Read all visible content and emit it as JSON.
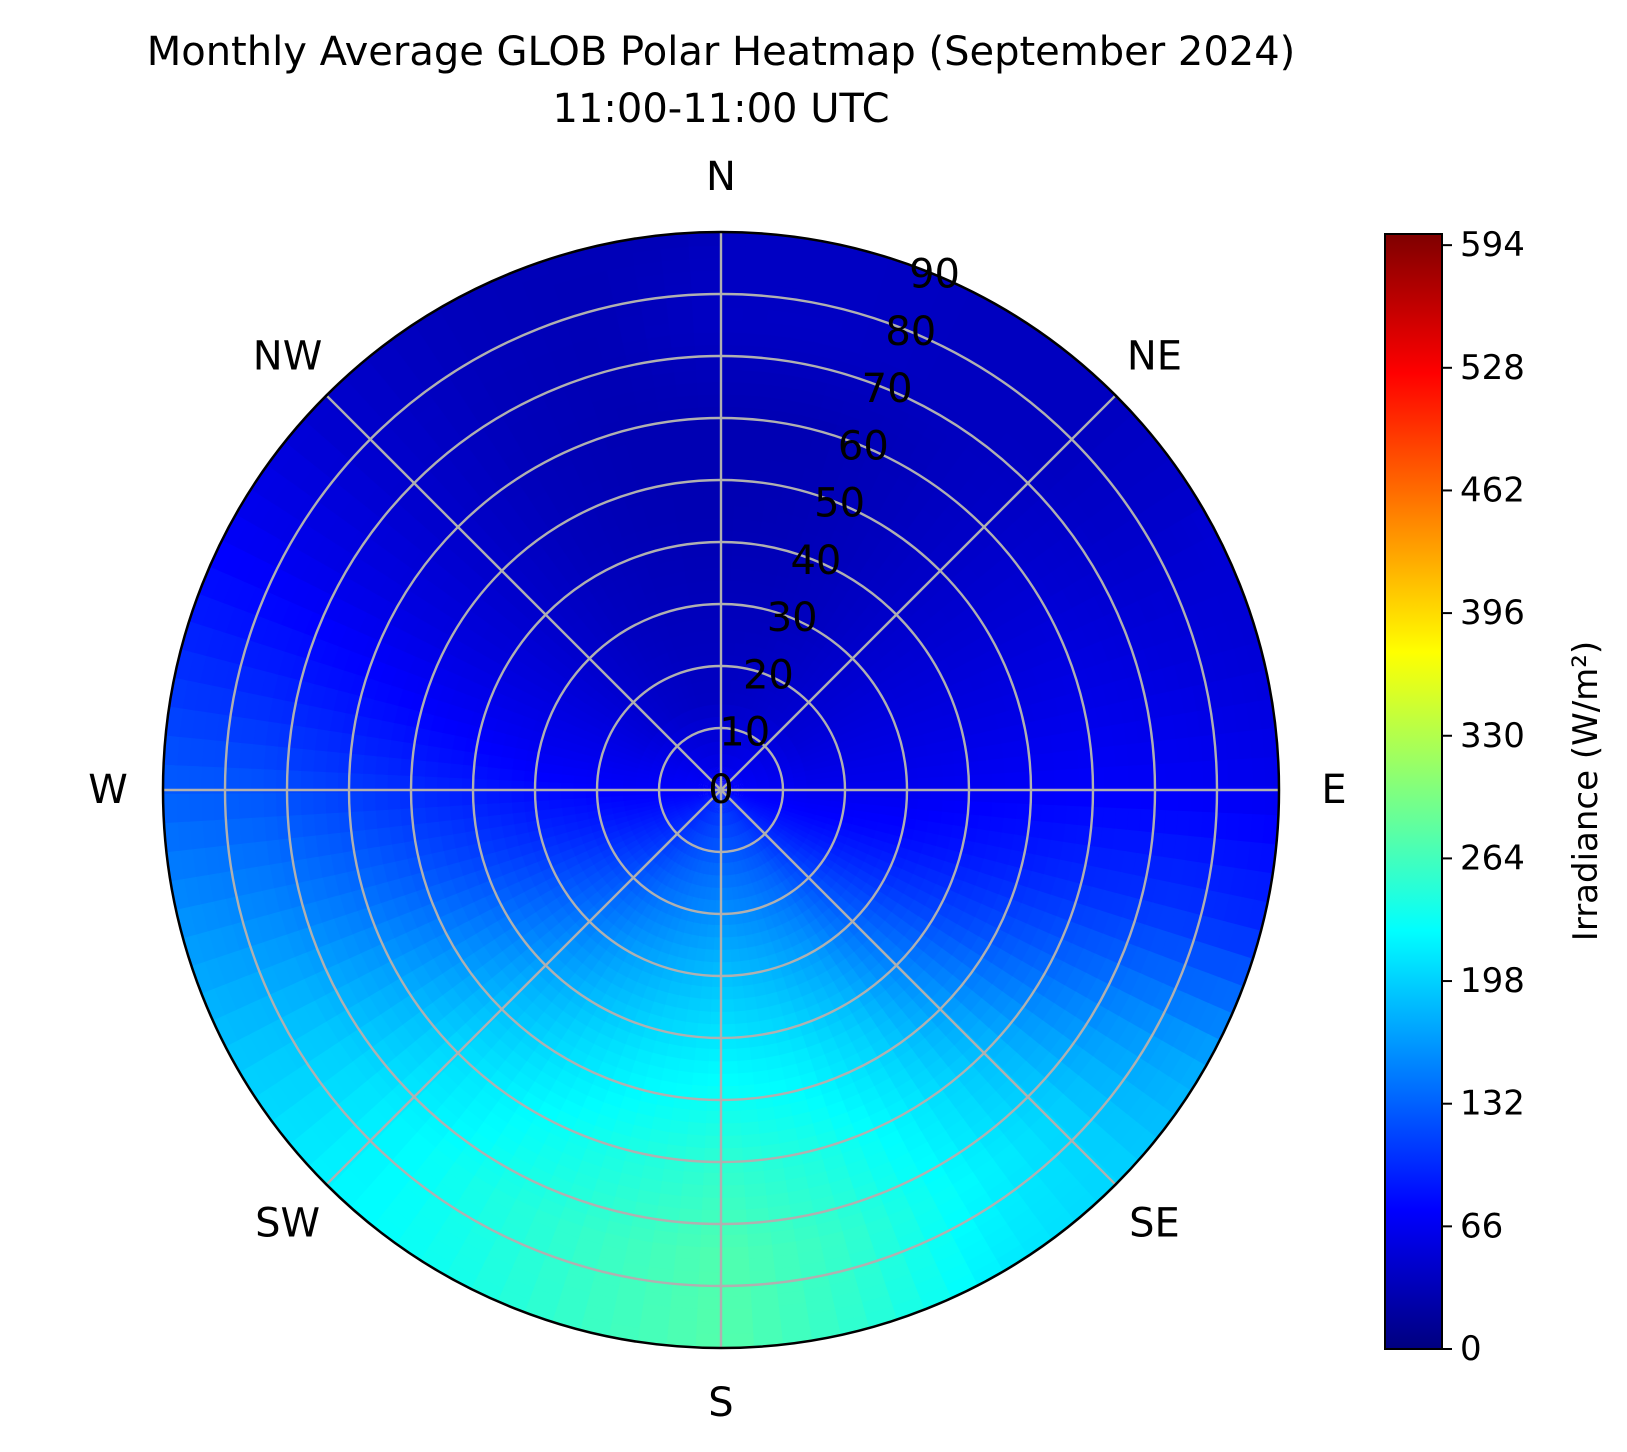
{
  "chart_data": {
    "type": "heatmap",
    "projection": "polar",
    "title": "Monthly Average GLOB Polar Heatmap (September 2024)",
    "subtitle": "11:00-11:00 UTC",
    "theta_direction": "clockwise",
    "theta_zero": "N",
    "direction_labels": [
      "N",
      "NE",
      "E",
      "SE",
      "S",
      "SW",
      "W",
      "NW"
    ],
    "direction_degrees": [
      0,
      45,
      90,
      135,
      180,
      225,
      270,
      315
    ],
    "radial_ticks": [
      "0",
      "10",
      "20",
      "30",
      "40",
      "50",
      "60",
      "70",
      "80",
      "90"
    ],
    "radial_values": [
      0,
      10,
      20,
      30,
      40,
      50,
      60,
      70,
      80,
      90
    ],
    "rlim": [
      0,
      90
    ],
    "grid": true,
    "azimuth_deg": [
      0,
      15,
      30,
      45,
      60,
      75,
      90,
      105,
      120,
      135,
      150,
      165,
      180,
      195,
      210,
      225,
      240,
      255,
      270,
      285,
      300,
      315,
      330,
      345,
      360
    ],
    "tilt_deg": [
      0,
      15,
      30,
      45,
      60,
      75,
      90
    ],
    "values": [
      [
        69,
        40,
        35,
        30,
        30,
        40,
        null
      ],
      [
        70,
        42,
        35,
        32,
        30,
        40,
        null
      ],
      [
        71,
        45,
        38,
        36,
        35,
        38,
        null
      ],
      [
        72,
        48,
        45,
        43,
        42,
        38,
        null
      ],
      [
        73,
        52,
        52,
        50,
        50,
        45,
        null
      ],
      [
        74,
        58,
        58,
        58,
        60,
        55,
        50
      ],
      [
        75,
        65,
        65,
        70,
        72,
        70,
        65
      ],
      [
        78,
        75,
        80,
        90,
        100,
        105,
        100
      ],
      [
        82,
        90,
        105,
        120,
        140,
        160,
        175
      ],
      [
        86,
        110,
        135,
        160,
        185,
        200,
        200
      ],
      [
        90,
        130,
        165,
        195,
        215,
        225,
        215
      ],
      [
        93,
        140,
        180,
        215,
        240,
        255,
        250
      ],
      [
        95,
        145,
        188,
        222,
        252,
        272,
        275
      ],
      [
        93,
        140,
        180,
        215,
        240,
        258,
        258
      ],
      [
        90,
        130,
        168,
        200,
        225,
        240,
        235
      ],
      [
        86,
        115,
        148,
        180,
        205,
        218,
        220
      ],
      [
        82,
        100,
        125,
        150,
        172,
        190,
        195
      ],
      [
        78,
        85,
        100,
        118,
        138,
        155,
        165
      ],
      [
        75,
        72,
        80,
        95,
        110,
        125,
        130
      ],
      [
        73,
        65,
        65,
        72,
        82,
        92,
        98
      ],
      [
        72,
        56,
        55,
        55,
        58,
        62,
        66
      ],
      [
        71,
        48,
        45,
        44,
        44,
        45,
        45
      ],
      [
        70,
        43,
        38,
        35,
        34,
        35,
        35
      ],
      [
        69,
        40,
        35,
        31,
        30,
        32,
        33
      ],
      [
        69,
        40,
        35,
        30,
        30,
        40,
        null
      ]
    ],
    "colorbar": {
      "label": "Irradiance (W/m²)",
      "ticks": [
        "594",
        "528",
        "462",
        "396",
        "330",
        "264",
        "198",
        "132",
        "66",
        "0"
      ],
      "tick_values": [
        594,
        528,
        462,
        396,
        330,
        264,
        198,
        132,
        66,
        0
      ],
      "vmin": 0,
      "vmax": 600,
      "colormap": "jet"
    },
    "colors": {
      "grid": "#b0b0b0",
      "frame": "#000000"
    }
  }
}
